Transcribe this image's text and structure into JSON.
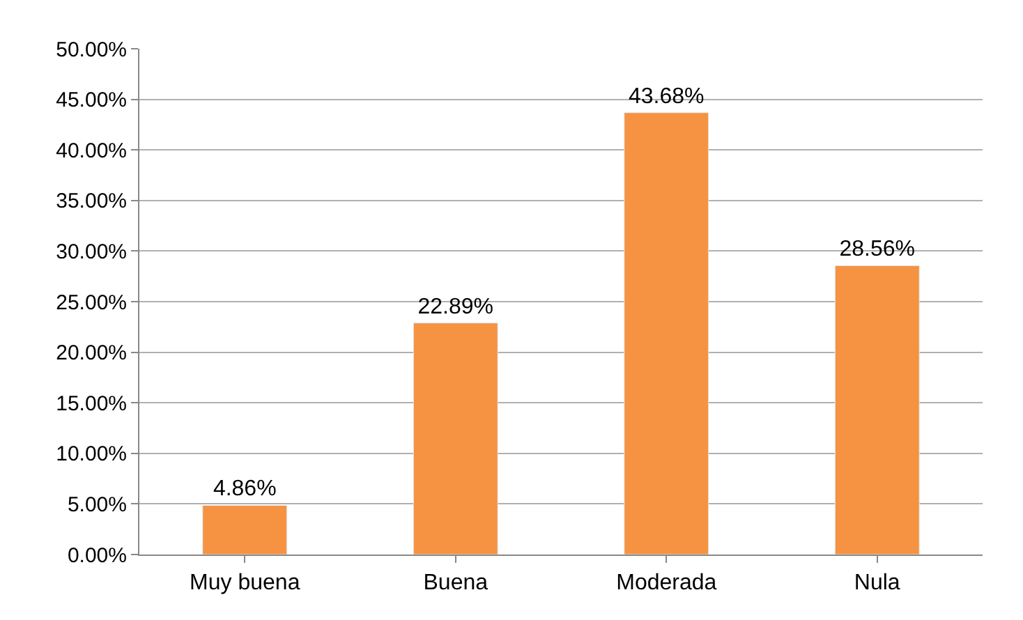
{
  "chart_data": {
    "type": "bar",
    "categories": [
      "Muy buena",
      "Buena",
      "Moderada",
      "Nula"
    ],
    "values": [
      4.86,
      22.89,
      43.68,
      28.56
    ],
    "color": "#f59342",
    "value_labels": [
      "4.86%",
      "22.89%",
      "43.68%",
      "28.56%"
    ],
    "ylim": [
      0,
      50
    ],
    "yticks": [
      {
        "value": 0,
        "label": "0.00%"
      },
      {
        "value": 5,
        "label": "5.00%"
      },
      {
        "value": 10,
        "label": "10.00%"
      },
      {
        "value": 15,
        "label": "15.00%"
      },
      {
        "value": 20,
        "label": "20.00%"
      },
      {
        "value": 25,
        "label": "25.00%"
      },
      {
        "value": 30,
        "label": "30.00%"
      },
      {
        "value": 35,
        "label": "35.00%"
      },
      {
        "value": 40,
        "label": "40.00%"
      },
      {
        "value": 45,
        "label": "45.00%"
      },
      {
        "value": 50,
        "label": "50.00%"
      }
    ],
    "grid": "y"
  }
}
